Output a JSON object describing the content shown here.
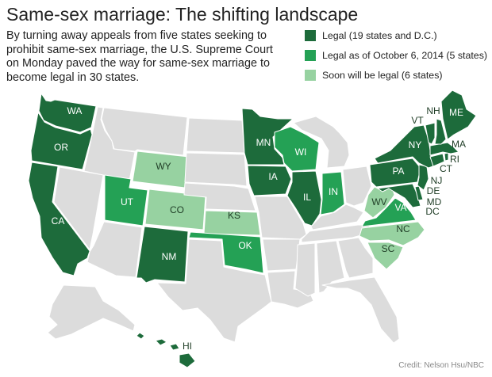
{
  "title": "Same-sex marriage: The shifting landscape",
  "intro": "By turning away appeals from five states seeking to prohibit same-sex marriage, the U.S. Supreme Court on Monday paved the way for same-sex marriage to become legal in 30 states.",
  "legend": [
    {
      "label": "Legal (19 states and D.C.)",
      "color": "#1d6b3b",
      "status": "legal"
    },
    {
      "label": "Legal as of October 6, 2014 (5 states)",
      "color": "#24a155",
      "status": "oct6"
    },
    {
      "label": "Soon will be legal (6 states)",
      "color": "#97d2a1",
      "status": "soon"
    }
  ],
  "colors": {
    "legal": "#1d6b3b",
    "oct6": "#24a155",
    "soon": "#97d2a1",
    "none": "#dcdcdc",
    "border": "#ffffff"
  },
  "state_labels": {
    "WA": "WA",
    "OR": "OR",
    "CA": "CA",
    "NM": "NM",
    "MN": "MN",
    "IA": "IA",
    "IL": "IL",
    "PA": "PA",
    "NY": "NY",
    "VT": "VT",
    "NH": "NH",
    "ME": "ME",
    "MA": "MA",
    "RI": "RI",
    "CT": "CT",
    "NJ": "NJ",
    "DE": "DE",
    "MD": "MD",
    "DC": "DC",
    "HI": "HI",
    "UT": "UT",
    "OK": "OK",
    "IN": "IN",
    "WI": "WI",
    "VA": "VA",
    "WY": "WY",
    "CO": "CO",
    "KS": "KS",
    "WV": "WV",
    "NC": "NC",
    "SC": "SC"
  },
  "credit": "Credit: Nelson Hsu/NBC"
}
